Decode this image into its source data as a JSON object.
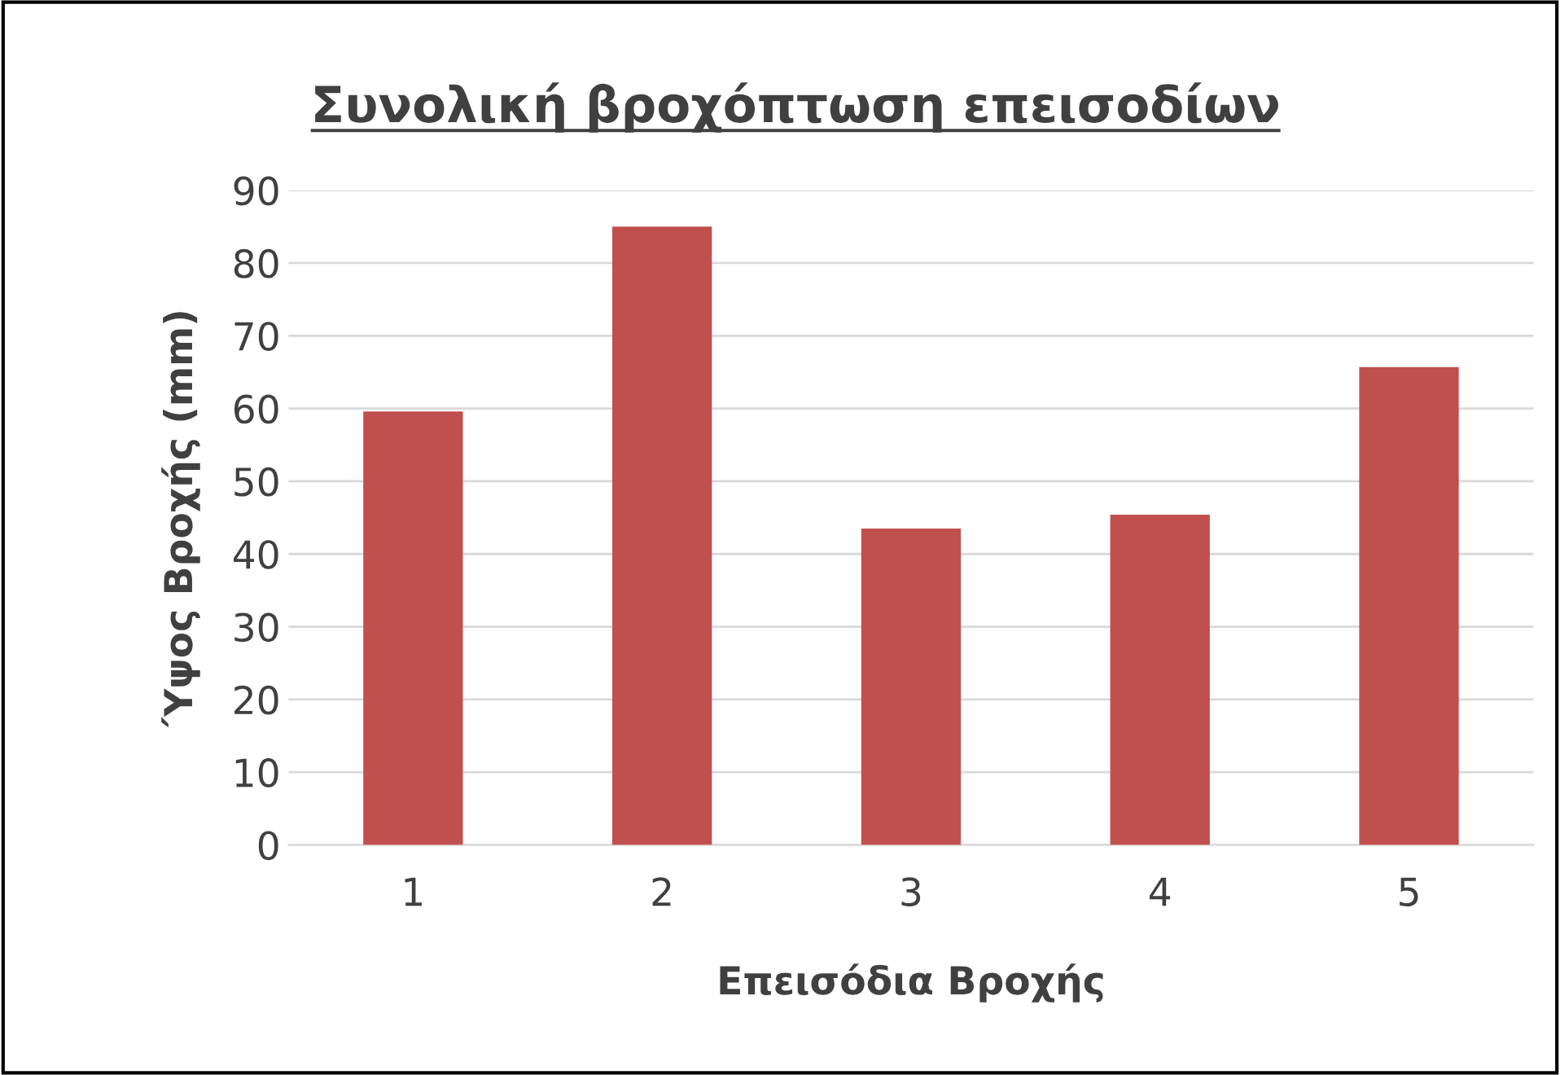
{
  "chart_data": {
    "type": "bar",
    "title": "Συνολική βροχόπτωση επεισοδίων",
    "xlabel": "Επεισόδια Βροχής",
    "ylabel": "Ύψος Βροχής (mm)",
    "categories": [
      "1",
      "2",
      "3",
      "4",
      "5"
    ],
    "values": [
      59.6,
      85,
      43.5,
      45.4,
      65.7
    ],
    "color": "#c0504d",
    "ylim": [
      0,
      90
    ],
    "yticks": [
      0,
      10,
      20,
      30,
      40,
      50,
      60,
      70,
      80,
      90
    ],
    "grid": "y"
  }
}
